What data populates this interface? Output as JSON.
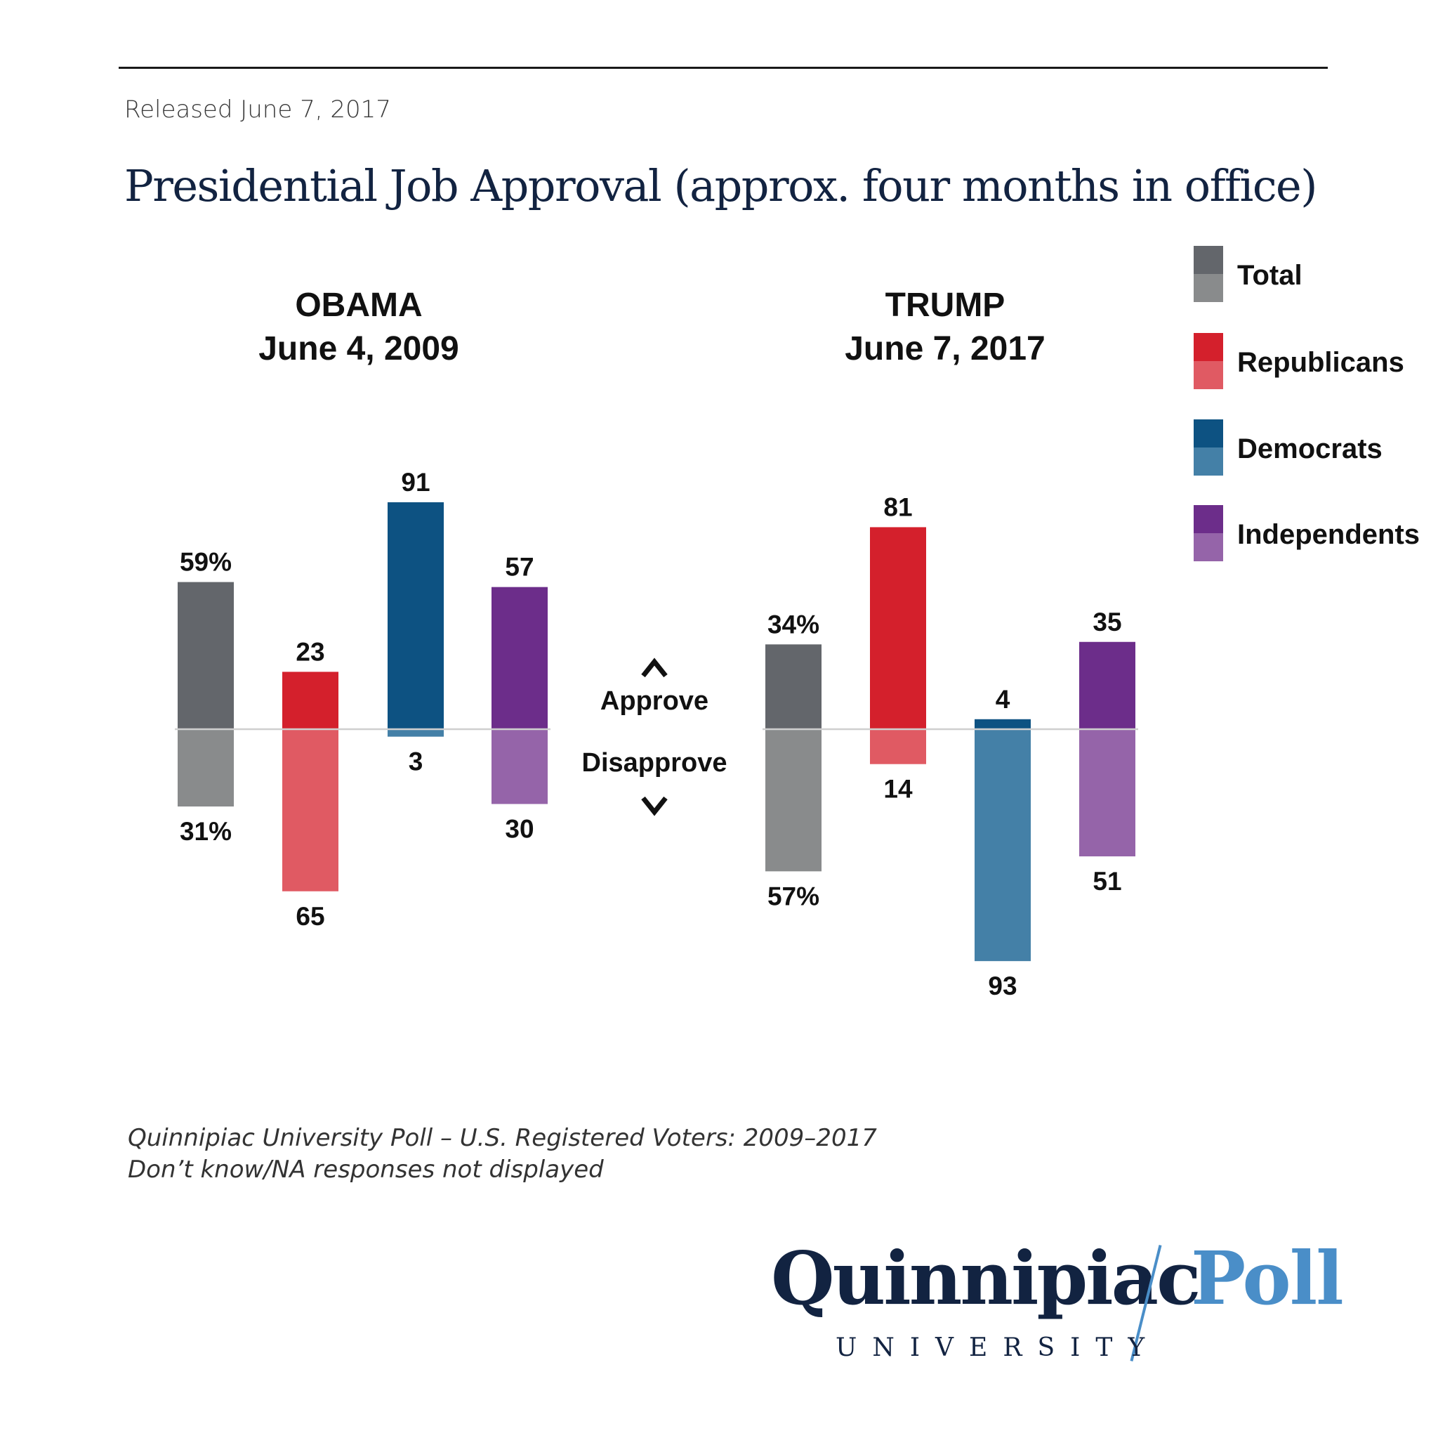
{
  "header": {
    "released": "Released June 7, 2017",
    "title": "Presidential Job Approval (approx. four months in office)"
  },
  "footer": {
    "note_line1": "Quinnipiac University Poll – U.S. Registered Voters: 2009–2017",
    "note_line2": "Don’t know/NA responses not displayed"
  },
  "logo": {
    "word": "Quinnipiac",
    "poll": "Poll",
    "university": "UNIVERSITY"
  },
  "colors": {
    "total_approve": "#63666b",
    "total_disapprove": "#898b8c",
    "republicans_approve": "#d4202c",
    "republicans_disapprove": "#e05a63",
    "democrats_approve": "#0d5282",
    "democrats_disapprove": "#4480a7",
    "independents_approve": "#6c2d8a",
    "independents_disapprove": "#9564a9"
  },
  "chart_data": {
    "type": "bar",
    "title": "Presidential Job Approval (approx. four months in office)",
    "categories": [
      "Total",
      "Republicans",
      "Democrats",
      "Independents"
    ],
    "legend": {
      "placement": "top-right",
      "entries": [
        "Total",
        "Republicans",
        "Democrats",
        "Independents"
      ]
    },
    "direction_labels": {
      "approve": "Approve",
      "disapprove": "Disapprove"
    },
    "panels": [
      {
        "president": "OBAMA",
        "date": "June 4, 2009",
        "approve": [
          59,
          23,
          91,
          57
        ],
        "disapprove": [
          31,
          65,
          3,
          30
        ],
        "approve_labels": [
          "59%",
          "23",
          "91",
          "57"
        ],
        "disapprove_labels": [
          "31%",
          "65",
          "3",
          "30"
        ]
      },
      {
        "president": "TRUMP",
        "date": "June 7, 2017",
        "approve": [
          34,
          81,
          4,
          35
        ],
        "disapprove": [
          57,
          14,
          93,
          51
        ],
        "approve_labels": [
          "34%",
          "81",
          "4",
          "35"
        ],
        "disapprove_labels": [
          "57%",
          "14",
          "93",
          "51"
        ]
      }
    ],
    "ylim": [
      -100,
      100
    ],
    "grid": false
  }
}
